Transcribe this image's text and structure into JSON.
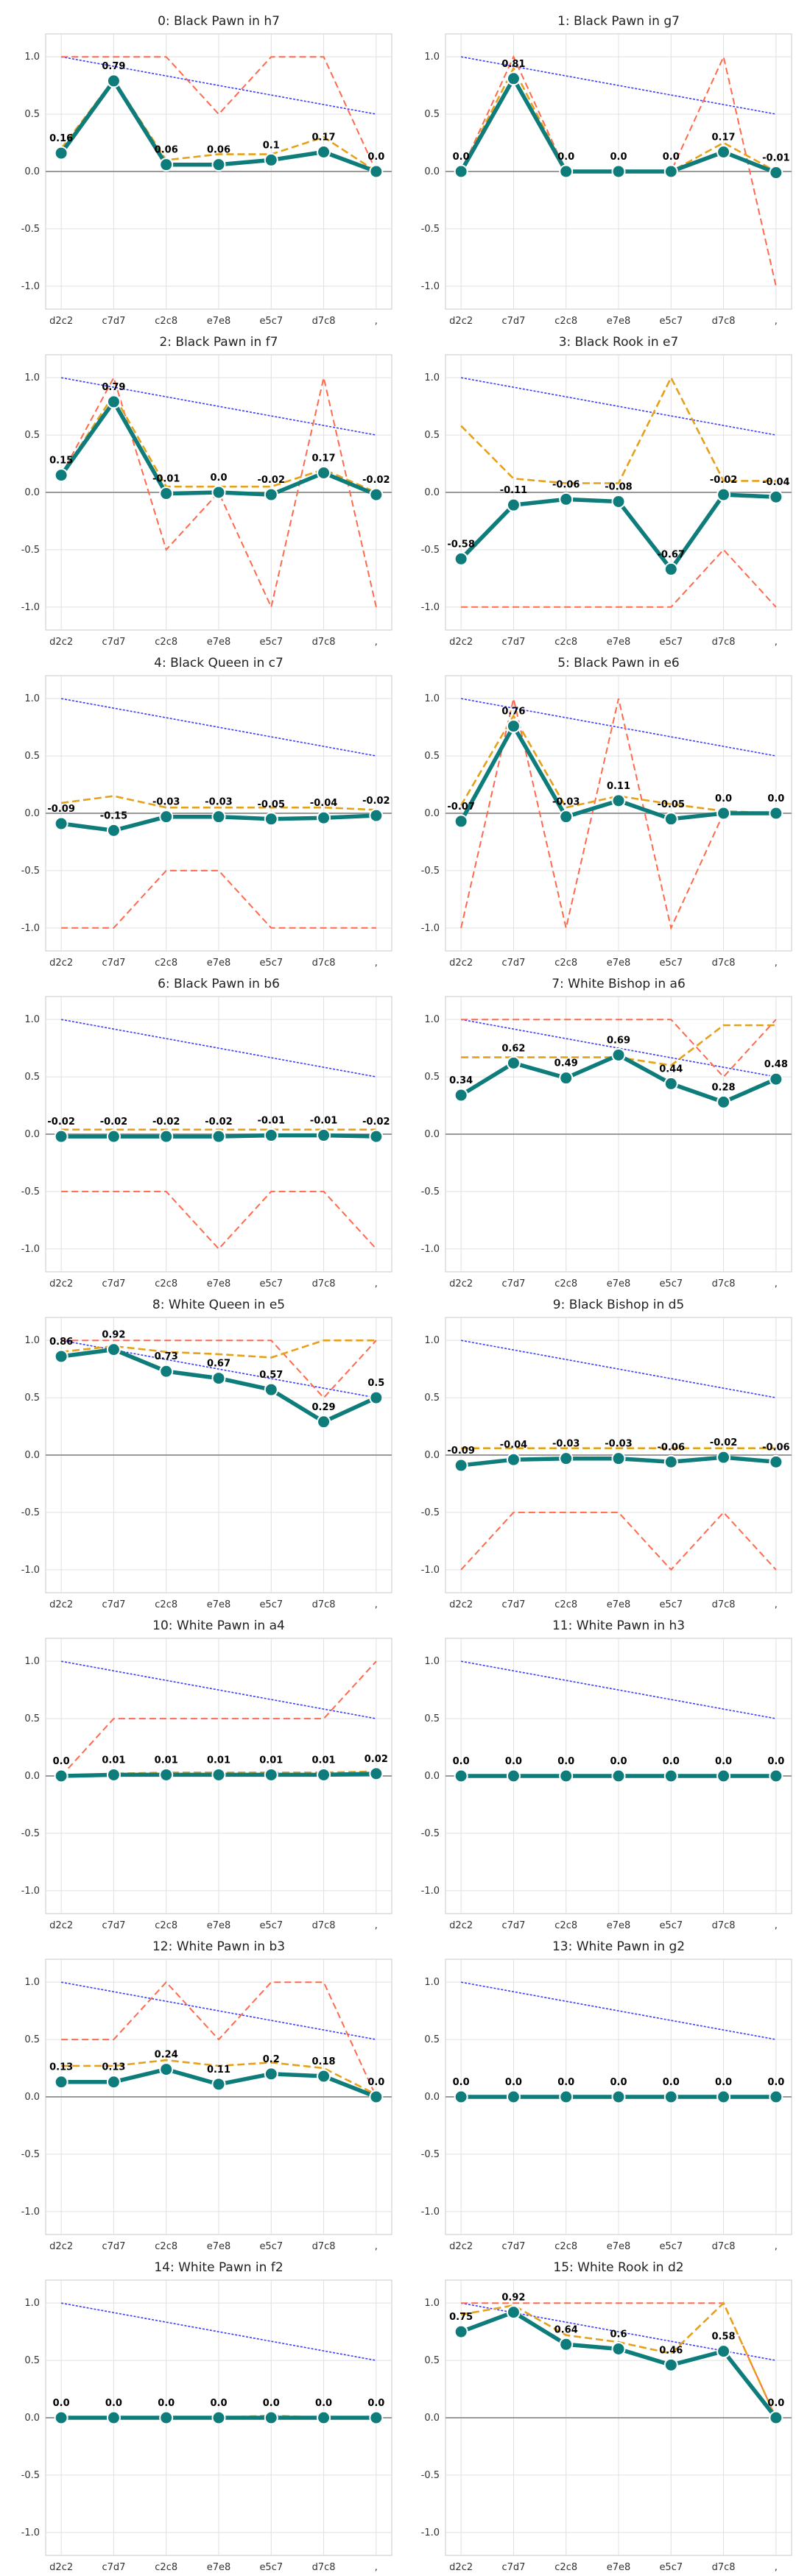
{
  "colors": {
    "main": "#0e7c7b",
    "reference": "#3b3bff",
    "bounds": "#ff6a4d",
    "average": "#e6a11a",
    "zero": "#999999",
    "grid": "#e0e0e0"
  },
  "chart_data": [
    {
      "type": "line",
      "title": "0: Black Pawn in h7",
      "categories": [
        "d2c2",
        "c7d7",
        "c2c8",
        "e7e8",
        "e5c7",
        "d7c8",
        ","
      ],
      "ylim": [
        -1.2,
        1.2
      ],
      "yticks": [
        "1.0",
        "0.5",
        "0.0",
        "-0.5",
        "-1.0"
      ],
      "grid": true,
      "values": [
        0.16,
        0.79,
        0.06,
        0.06,
        0.1,
        0.17,
        0.0
      ],
      "labels": [
        "0.16",
        "0.79",
        "0.06",
        "0.06",
        "0.1",
        "0.17",
        "0.0"
      ],
      "average": [
        0.2,
        0.8,
        0.1,
        0.15,
        0.15,
        0.3,
        0.0
      ],
      "bounds": [
        1.0,
        1.0,
        1.0,
        0.5,
        1.0,
        1.0,
        0.0
      ]
    },
    {
      "type": "line",
      "title": "1: Black Pawn in g7",
      "categories": [
        "d2c2",
        "c7d7",
        "c2c8",
        "e7e8",
        "e5c7",
        "d7c8",
        ","
      ],
      "ylim": [
        -1.2,
        1.2
      ],
      "yticks": [
        "1.0",
        "0.5",
        "0.0",
        "-0.5",
        "-1.0"
      ],
      "grid": true,
      "values": [
        0.0,
        0.81,
        0.0,
        0.0,
        0.0,
        0.17,
        -0.01
      ],
      "labels": [
        "0.0",
        "0.81",
        "0.0",
        "0.0",
        "0.0",
        "0.17",
        "-0.01"
      ],
      "average": [
        0.0,
        0.9,
        0.0,
        0.0,
        0.0,
        0.25,
        0.0
      ],
      "bounds": [
        0.0,
        1.0,
        0.0,
        0.0,
        0.0,
        1.0,
        -1.0
      ]
    },
    {
      "type": "line",
      "title": "2: Black Pawn in f7",
      "categories": [
        "d2c2",
        "c7d7",
        "c2c8",
        "e7e8",
        "e5c7",
        "d7c8",
        ","
      ],
      "ylim": [
        -1.2,
        1.2
      ],
      "yticks": [
        "1.0",
        "0.5",
        "0.0",
        "-0.5",
        "-1.0"
      ],
      "grid": true,
      "values": [
        0.15,
        0.79,
        -0.01,
        0.0,
        -0.02,
        0.17,
        -0.02
      ],
      "labels": [
        "0.15",
        "0.79",
        "-0.01",
        "0.0",
        "-0.02",
        "0.17",
        "-0.02"
      ],
      "average": [
        0.15,
        0.85,
        0.05,
        0.05,
        0.05,
        0.2,
        0.0
      ],
      "bounds": [
        0.15,
        1.0,
        -0.5,
        0.0,
        -1.0,
        1.0,
        -1.0
      ]
    },
    {
      "type": "line",
      "title": "3: Black Rook in e7",
      "categories": [
        "d2c2",
        "c7d7",
        "c2c8",
        "e7e8",
        "e5c7",
        "d7c8",
        ","
      ],
      "ylim": [
        -1.2,
        1.2
      ],
      "yticks": [
        "1.0",
        "0.5",
        "0.0",
        "-0.5",
        "-1.0"
      ],
      "grid": true,
      "values": [
        -0.58,
        -0.11,
        -0.06,
        -0.08,
        -0.67,
        -0.02,
        -0.04
      ],
      "labels": [
        "-0.58",
        "-0.11",
        "-0.06",
        "-0.08",
        "-0.67",
        "-0.02",
        "-0.04"
      ],
      "average": [
        0.58,
        0.12,
        0.08,
        0.08,
        1.0,
        0.1,
        0.1
      ],
      "bounds": [
        -1.0,
        -1.0,
        -1.0,
        -1.0,
        -1.0,
        -0.5,
        -1.0
      ]
    },
    {
      "type": "line",
      "title": "4: Black Queen in c7",
      "categories": [
        "d2c2",
        "c7d7",
        "c2c8",
        "e7e8",
        "e5c7",
        "d7c8",
        ","
      ],
      "ylim": [
        -1.2,
        1.2
      ],
      "yticks": [
        "1.0",
        "0.5",
        "0.0",
        "-0.5",
        "-1.0"
      ],
      "grid": true,
      "values": [
        -0.09,
        -0.15,
        -0.03,
        -0.03,
        -0.05,
        -0.04,
        -0.02
      ],
      "labels": [
        "-0.09",
        "-0.15",
        "-0.03",
        "-0.03",
        "-0.05",
        "-0.04",
        "-0.02"
      ],
      "average": [
        0.09,
        0.15,
        0.05,
        0.05,
        0.05,
        0.05,
        0.03
      ],
      "bounds": [
        -1.0,
        -1.0,
        -0.5,
        -0.5,
        -1.0,
        -1.0,
        -1.0
      ]
    },
    {
      "type": "line",
      "title": "5: Black Pawn in e6",
      "categories": [
        "d2c2",
        "c7d7",
        "c2c8",
        "e7e8",
        "e5c7",
        "d7c8",
        ","
      ],
      "ylim": [
        -1.2,
        1.2
      ],
      "yticks": [
        "1.0",
        "0.5",
        "0.0",
        "-0.5",
        "-1.0"
      ],
      "grid": true,
      "values": [
        -0.07,
        0.76,
        -0.03,
        0.11,
        -0.05,
        0.0,
        0.0
      ],
      "labels": [
        "-0.07",
        "0.76",
        "-0.03",
        "0.11",
        "-0.05",
        "0.0",
        "0.0"
      ],
      "average": [
        0.07,
        0.85,
        0.05,
        0.15,
        0.08,
        0.02,
        0.0
      ],
      "bounds": [
        -1.0,
        1.0,
        -1.0,
        1.0,
        -1.0,
        0.0,
        0.0
      ]
    },
    {
      "type": "line",
      "title": "6: Black Pawn in b6",
      "categories": [
        "d2c2",
        "c7d7",
        "c2c8",
        "e7e8",
        "e5c7",
        "d7c8",
        ","
      ],
      "ylim": [
        -1.2,
        1.2
      ],
      "yticks": [
        "1.0",
        "0.5",
        "0.0",
        "-0.5",
        "-1.0"
      ],
      "grid": true,
      "values": [
        -0.02,
        -0.02,
        -0.02,
        -0.02,
        -0.01,
        -0.01,
        -0.02
      ],
      "labels": [
        "-0.02",
        "-0.02",
        "-0.02",
        "-0.02",
        "-0.01",
        "-0.01",
        "-0.02"
      ],
      "average": [
        0.04,
        0.04,
        0.04,
        0.04,
        0.04,
        0.04,
        0.04
      ],
      "bounds": [
        -0.5,
        -0.5,
        -0.5,
        -1.0,
        -0.5,
        -0.5,
        -1.0
      ]
    },
    {
      "type": "line",
      "title": "7: White Bishop in a6",
      "categories": [
        "d2c2",
        "c7d7",
        "c2c8",
        "e7e8",
        "e5c7",
        "d7c8",
        ","
      ],
      "ylim": [
        -1.2,
        1.2
      ],
      "yticks": [
        "1.0",
        "0.5",
        "0.0",
        "-0.5",
        "-1.0"
      ],
      "grid": true,
      "values": [
        0.34,
        0.62,
        0.49,
        0.69,
        0.44,
        0.28,
        0.48
      ],
      "labels": [
        "0.34",
        "0.62",
        "0.49",
        "0.69",
        "0.44",
        "0.28",
        "0.48"
      ],
      "average": [
        0.67,
        0.67,
        0.67,
        0.67,
        0.6,
        0.95,
        0.95
      ],
      "bounds": [
        1.0,
        1.0,
        1.0,
        1.0,
        1.0,
        0.5,
        1.0
      ]
    },
    {
      "type": "line",
      "title": "8: White Queen in e5",
      "categories": [
        "d2c2",
        "c7d7",
        "c2c8",
        "e7e8",
        "e5c7",
        "d7c8",
        ","
      ],
      "ylim": [
        -1.2,
        1.2
      ],
      "yticks": [
        "1.0",
        "0.5",
        "0.0",
        "-0.5",
        "-1.0"
      ],
      "grid": true,
      "values": [
        0.86,
        0.92,
        0.73,
        0.67,
        0.57,
        0.29,
        0.5
      ],
      "labels": [
        "0.86",
        "0.92",
        "0.73",
        "0.67",
        "0.57",
        "0.29",
        "0.5"
      ],
      "average": [
        0.9,
        0.95,
        0.9,
        0.88,
        0.85,
        1.0,
        1.0
      ],
      "bounds": [
        1.0,
        1.0,
        1.0,
        1.0,
        1.0,
        0.5,
        1.0
      ]
    },
    {
      "type": "line",
      "title": "9: Black Bishop in d5",
      "categories": [
        "d2c2",
        "c7d7",
        "c2c8",
        "e7e8",
        "e5c7",
        "d7c8",
        ","
      ],
      "ylim": [
        -1.2,
        1.2
      ],
      "yticks": [
        "1.0",
        "0.5",
        "0.0",
        "-0.5",
        "-1.0"
      ],
      "grid": true,
      "values": [
        -0.09,
        -0.04,
        -0.03,
        -0.03,
        -0.06,
        -0.02,
        -0.06
      ],
      "labels": [
        "-0.09",
        "-0.04",
        "-0.03",
        "-0.03",
        "-0.06",
        "-0.02",
        "-0.06"
      ],
      "average": [
        0.06,
        0.06,
        0.06,
        0.06,
        0.06,
        0.06,
        0.06
      ],
      "bounds": [
        -1.0,
        -0.5,
        -0.5,
        -0.5,
        -1.0,
        -0.5,
        -1.0
      ]
    },
    {
      "type": "line",
      "title": "10: White Pawn in a4",
      "categories": [
        "d2c2",
        "c7d7",
        "c2c8",
        "e7e8",
        "e5c7",
        "d7c8",
        ","
      ],
      "ylim": [
        -1.2,
        1.2
      ],
      "yticks": [
        "1.0",
        "0.5",
        "0.0",
        "-0.5",
        "-1.0"
      ],
      "grid": true,
      "values": [
        0.0,
        0.01,
        0.01,
        0.01,
        0.01,
        0.01,
        0.02
      ],
      "labels": [
        "0.0",
        "0.01",
        "0.01",
        "0.01",
        "0.01",
        "0.01",
        "0.02"
      ],
      "average": [
        0.0,
        0.02,
        0.03,
        0.03,
        0.03,
        0.03,
        0.04
      ],
      "bounds": [
        0.0,
        0.5,
        0.5,
        0.5,
        0.5,
        0.5,
        1.0
      ]
    },
    {
      "type": "line",
      "title": "11: White Pawn in h3",
      "categories": [
        "d2c2",
        "c7d7",
        "c2c8",
        "e7e8",
        "e5c7",
        "d7c8",
        ","
      ],
      "ylim": [
        -1.2,
        1.2
      ],
      "yticks": [
        "1.0",
        "0.5",
        "0.0",
        "-0.5",
        "-1.0"
      ],
      "grid": true,
      "values": [
        0.0,
        0.0,
        0.0,
        0.0,
        0.0,
        0.0,
        0.0
      ],
      "labels": [
        "0.0",
        "0.0",
        "0.0",
        "0.0",
        "0.0",
        "0.0",
        "0.0"
      ],
      "average": [
        0.0,
        0.0,
        0.0,
        0.0,
        0.0,
        0.0,
        0.0
      ],
      "bounds": [
        0.0,
        0.0,
        0.0,
        0.0,
        0.0,
        0.0,
        0.0
      ]
    },
    {
      "type": "line",
      "title": "12: White Pawn in b3",
      "categories": [
        "d2c2",
        "c7d7",
        "c2c8",
        "e7e8",
        "e5c7",
        "d7c8",
        ","
      ],
      "ylim": [
        -1.2,
        1.2
      ],
      "yticks": [
        "1.0",
        "0.5",
        "0.0",
        "-0.5",
        "-1.0"
      ],
      "grid": true,
      "values": [
        0.13,
        0.13,
        0.24,
        0.11,
        0.2,
        0.18,
        0.0
      ],
      "labels": [
        "0.13",
        "0.13",
        "0.24",
        "0.11",
        "0.2",
        "0.18",
        "0.0"
      ],
      "average": [
        0.27,
        0.27,
        0.32,
        0.27,
        0.3,
        0.25,
        0.02
      ],
      "bounds": [
        0.5,
        0.5,
        1.0,
        0.5,
        1.0,
        1.0,
        0.0
      ]
    },
    {
      "type": "line",
      "title": "13: White Pawn in g2",
      "categories": [
        "d2c2",
        "c7d7",
        "c2c8",
        "e7e8",
        "e5c7",
        "d7c8",
        ","
      ],
      "ylim": [
        -1.2,
        1.2
      ],
      "yticks": [
        "1.0",
        "0.5",
        "0.0",
        "-0.5",
        "-1.0"
      ],
      "grid": true,
      "values": [
        0.0,
        0.0,
        0.0,
        0.0,
        0.0,
        0.0,
        0.0
      ],
      "labels": [
        "0.0",
        "0.0",
        "0.0",
        "0.0",
        "0.0",
        "0.0",
        "0.0"
      ],
      "average": [
        0.0,
        0.0,
        0.0,
        0.0,
        0.0,
        0.0,
        0.0
      ],
      "bounds": [
        0.0,
        0.0,
        0.0,
        0.0,
        0.0,
        0.0,
        0.0
      ]
    },
    {
      "type": "line",
      "title": "14: White Pawn in f2",
      "categories": [
        "d2c2",
        "c7d7",
        "c2c8",
        "e7e8",
        "e5c7",
        "d7c8",
        ","
      ],
      "ylim": [
        -1.2,
        1.2
      ],
      "yticks": [
        "1.0",
        "0.5",
        "0.0",
        "-0.5",
        "-1.0"
      ],
      "grid": true,
      "values": [
        0.0,
        0.0,
        0.0,
        0.0,
        0.0,
        0.0,
        0.0
      ],
      "labels": [
        "0.0",
        "0.0",
        "0.0",
        "0.0",
        "0.0",
        "0.0",
        "0.0"
      ],
      "average": [
        0.0,
        0.0,
        0.0,
        0.0,
        0.02,
        0.0,
        0.0
      ],
      "bounds": [
        0.0,
        0.0,
        0.0,
        0.0,
        0.0,
        0.0,
        0.0
      ]
    },
    {
      "type": "line",
      "title": "15: White Rook in d2",
      "categories": [
        "d2c2",
        "c7d7",
        "c2c8",
        "e7e8",
        "e5c7",
        "d7c8",
        ","
      ],
      "ylim": [
        -1.2,
        1.2
      ],
      "yticks": [
        "1.0",
        "0.5",
        "0.0",
        "-0.5",
        "-1.0"
      ],
      "grid": true,
      "values": [
        0.75,
        0.92,
        0.64,
        0.6,
        0.46,
        0.58,
        0.0
      ],
      "labels": [
        "0.75",
        "0.92",
        "0.64",
        "0.6",
        "0.46",
        "0.58",
        "0.0"
      ],
      "average": [
        0.9,
        0.98,
        0.72,
        0.66,
        0.56,
        1.0,
        0.0
      ],
      "bounds": [
        1.0,
        1.0,
        1.0,
        1.0,
        1.0,
        1.0,
        0.0
      ]
    }
  ]
}
